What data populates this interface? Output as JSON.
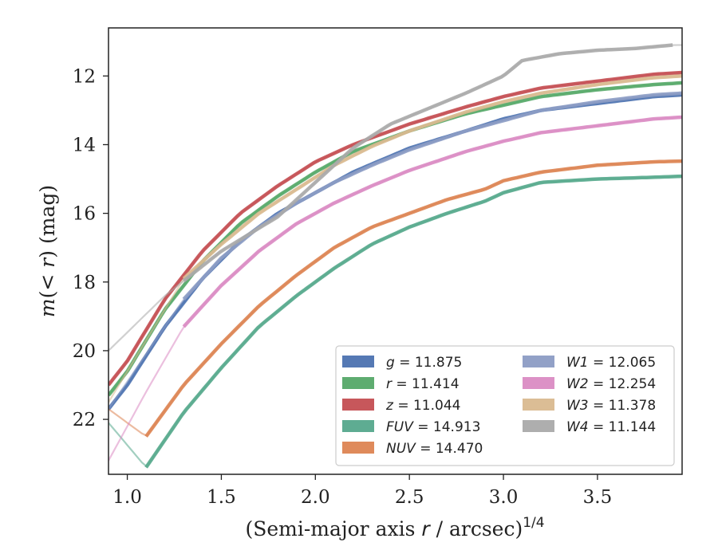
{
  "chart_data": {
    "type": "line",
    "xlabel": "(Semi-major axis r / arcsec)",
    "xlabel_italic_var": "r",
    "xlabel_exponent": "1/4",
    "ylabel": "m(< r) (mag)",
    "xlim": [
      0.9,
      3.95
    ],
    "ylim": [
      23.6,
      10.6
    ],
    "y_inverted": true,
    "x_ticks": [
      1.0,
      1.5,
      2.0,
      2.5,
      3.0,
      3.5
    ],
    "x_tick_labels": [
      "1.0",
      "1.5",
      "2.0",
      "2.5",
      "3.0",
      "3.5"
    ],
    "y_ticks": [
      12,
      14,
      16,
      18,
      20,
      22
    ],
    "y_tick_labels": [
      "12",
      "14",
      "16",
      "18",
      "20",
      "22"
    ],
    "grid": false,
    "legend_placement": "lower-right",
    "series": [
      {
        "name": "g",
        "total": "11.875",
        "color": "#4c72b0",
        "band_x": [
          0.9,
          3.95
        ],
        "x": [
          0.9,
          1.0,
          1.2,
          1.4,
          1.6,
          1.8,
          2.0,
          2.2,
          2.5,
          2.8,
          3.0,
          3.2,
          3.5,
          3.8,
          3.95
        ],
        "y": [
          21.7,
          21.0,
          19.3,
          17.9,
          16.8,
          16.0,
          15.4,
          14.8,
          14.1,
          13.6,
          13.25,
          13.0,
          12.8,
          12.6,
          12.55
        ]
      },
      {
        "name": "r",
        "total": "11.414",
        "color": "#55a868",
        "band_x": [
          0.9,
          3.95
        ],
        "x": [
          0.9,
          1.0,
          1.2,
          1.4,
          1.6,
          1.8,
          2.0,
          2.2,
          2.5,
          2.8,
          3.0,
          3.2,
          3.5,
          3.8,
          3.95
        ],
        "y": [
          21.3,
          20.6,
          18.8,
          17.4,
          16.3,
          15.5,
          14.8,
          14.2,
          13.6,
          13.1,
          12.85,
          12.6,
          12.4,
          12.25,
          12.2
        ]
      },
      {
        "name": "z",
        "total": "11.044",
        "color": "#c44e52",
        "band_x": [
          0.9,
          3.95
        ],
        "x": [
          0.9,
          1.0,
          1.2,
          1.4,
          1.6,
          1.8,
          2.0,
          2.2,
          2.5,
          2.8,
          3.0,
          3.2,
          3.5,
          3.8,
          3.95
        ],
        "y": [
          21.0,
          20.3,
          18.5,
          17.1,
          16.0,
          15.2,
          14.5,
          14.0,
          13.4,
          12.9,
          12.6,
          12.35,
          12.15,
          11.95,
          11.9
        ]
      },
      {
        "name": "FUV",
        "total": "14.913",
        "color": "#55a88c",
        "band_x": [
          1.1,
          3.95
        ],
        "x": [
          0.9,
          1.1,
          1.3,
          1.5,
          1.7,
          1.9,
          2.1,
          2.3,
          2.5,
          2.7,
          2.9,
          3.0,
          3.2,
          3.5,
          3.8,
          3.95
        ],
        "y": [
          22.1,
          23.4,
          21.8,
          20.5,
          19.3,
          18.4,
          17.6,
          16.9,
          16.4,
          16.0,
          15.65,
          15.4,
          15.1,
          15.0,
          14.95,
          14.92
        ]
      },
      {
        "name": "NUV",
        "total": "14.470",
        "color": "#dd8452",
        "band_x": [
          1.1,
          3.95
        ],
        "x": [
          0.9,
          1.1,
          1.3,
          1.5,
          1.7,
          1.9,
          2.1,
          2.3,
          2.5,
          2.7,
          2.9,
          3.0,
          3.2,
          3.5,
          3.8,
          3.95
        ],
        "y": [
          21.7,
          22.5,
          21.0,
          19.8,
          18.7,
          17.8,
          17.0,
          16.4,
          16.0,
          15.6,
          15.3,
          15.05,
          14.8,
          14.6,
          14.5,
          14.48
        ]
      },
      {
        "name": "W1",
        "total": "12.065",
        "color": "#8c9cc4",
        "band_x": [
          1.3,
          3.95
        ],
        "x": [
          0.9,
          1.3,
          1.5,
          1.7,
          1.9,
          2.1,
          2.3,
          2.5,
          2.8,
          3.0,
          3.2,
          3.5,
          3.8,
          3.95
        ],
        "y": [
          21.7,
          18.5,
          17.3,
          16.4,
          15.7,
          15.1,
          14.6,
          14.15,
          13.6,
          13.3,
          13.0,
          12.75,
          12.55,
          12.5
        ]
      },
      {
        "name": "W2",
        "total": "12.254",
        "color": "#da8bc3",
        "band_x": [
          1.3,
          3.95
        ],
        "x": [
          0.9,
          1.1,
          1.3,
          1.5,
          1.7,
          1.9,
          2.1,
          2.3,
          2.5,
          2.8,
          3.0,
          3.2,
          3.5,
          3.8,
          3.95
        ],
        "y": [
          23.2,
          21.2,
          19.3,
          18.1,
          17.1,
          16.3,
          15.7,
          15.2,
          14.75,
          14.2,
          13.9,
          13.65,
          13.45,
          13.25,
          13.2
        ]
      },
      {
        "name": "W3",
        "total": "11.378",
        "color": "#d9b98f",
        "band_x": [
          1.3,
          3.95
        ],
        "x": [
          0.9,
          1.3,
          1.5,
          1.7,
          1.9,
          2.1,
          2.3,
          2.5,
          2.8,
          3.0,
          3.2,
          3.5,
          3.8,
          3.95
        ],
        "y": [
          21.5,
          17.9,
          16.9,
          16.0,
          15.3,
          14.6,
          14.05,
          13.6,
          13.05,
          12.75,
          12.5,
          12.25,
          12.05,
          12.0
        ]
      },
      {
        "name": "W4",
        "total": "11.144",
        "color": "#aaaaaa",
        "band_x": [
          1.3,
          3.9
        ],
        "x": [
          0.9,
          1.2,
          1.5,
          1.8,
          2.0,
          2.2,
          2.4,
          2.6,
          2.8,
          3.0,
          3.1,
          3.3,
          3.5,
          3.7,
          3.9,
          3.95
        ],
        "y": [
          20.0,
          18.4,
          17.1,
          16.1,
          15.1,
          14.1,
          13.4,
          12.95,
          12.5,
          12.0,
          11.55,
          11.35,
          11.25,
          11.2,
          11.1,
          11.1
        ]
      }
    ]
  }
}
